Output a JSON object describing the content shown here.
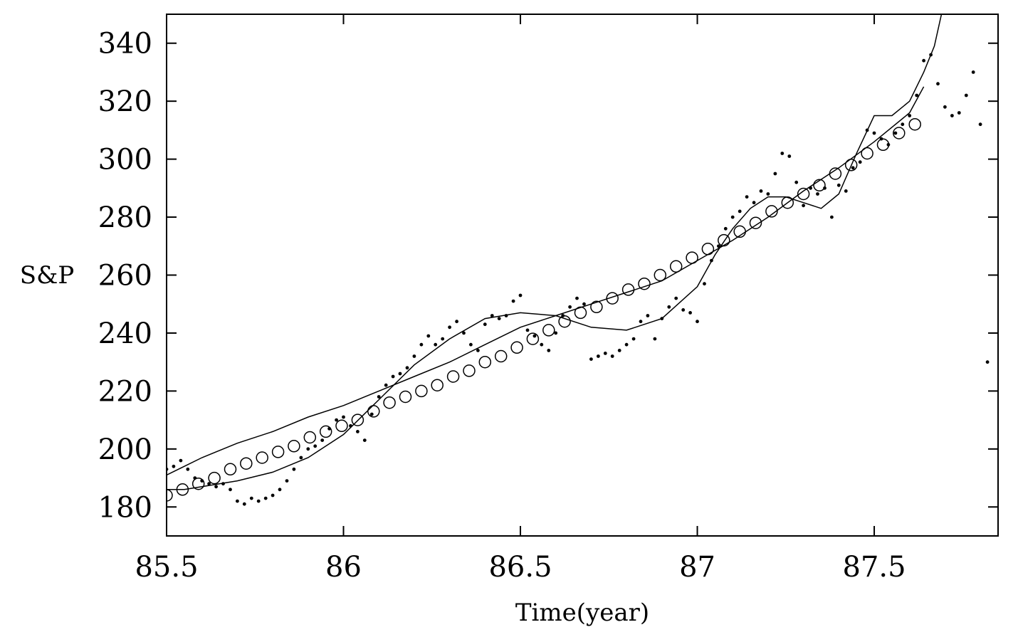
{
  "chart_data": {
    "type": "scatter",
    "title": "",
    "xlabel": "Time(year)",
    "ylabel": "S&P",
    "xlim": [
      85.5,
      87.85
    ],
    "ylim": [
      170,
      350
    ],
    "xticks": [
      85.5,
      86,
      86.5,
      87,
      87.5
    ],
    "xtick_labels": [
      "85.5",
      "86",
      "86.5",
      "87",
      "87.5"
    ],
    "yticks": [
      180,
      200,
      220,
      240,
      260,
      280,
      300,
      320,
      340
    ],
    "ytick_labels": [
      "180",
      "200",
      "220",
      "240",
      "260",
      "280",
      "300",
      "320",
      "340"
    ],
    "grid": false,
    "legend": "none",
    "series": [
      {
        "kind": "points",
        "x": [
          85.5,
          85.52,
          85.54,
          85.56,
          85.58,
          85.6,
          85.62,
          85.64,
          85.66,
          85.68,
          85.7,
          85.72,
          85.74,
          85.76,
          85.78,
          85.8,
          85.82,
          85.84,
          85.86,
          85.88,
          85.9,
          85.92,
          85.94,
          85.96,
          85.98,
          86.0,
          86.02,
          86.04,
          86.06,
          86.08,
          86.1,
          86.12,
          86.14,
          86.16,
          86.18,
          86.2,
          86.22,
          86.24,
          86.26,
          86.28,
          86.3,
          86.32,
          86.34,
          86.36,
          86.38,
          86.4,
          86.42,
          86.44,
          86.46,
          86.48,
          86.5,
          86.52,
          86.54,
          86.56,
          86.58,
          86.6,
          86.62,
          86.64,
          86.66,
          86.68,
          86.7,
          86.72,
          86.74,
          86.76,
          86.78,
          86.8,
          86.82,
          86.84,
          86.86,
          86.88,
          86.9,
          86.92,
          86.94,
          86.96,
          86.98,
          87.0,
          87.02,
          87.04,
          87.06,
          87.08,
          87.1,
          87.12,
          87.14,
          87.16,
          87.18,
          87.2,
          87.22,
          87.24,
          87.26,
          87.28,
          87.3,
          87.32,
          87.34,
          87.36,
          87.38,
          87.4,
          87.42,
          87.44,
          87.46,
          87.48,
          87.5,
          87.52,
          87.54,
          87.56,
          87.58,
          87.6,
          87.62,
          87.64,
          87.66,
          87.68,
          87.7,
          87.72,
          87.74,
          87.76,
          87.78,
          87.8,
          87.82
        ],
        "y": [
          193,
          194,
          196,
          193,
          190,
          189,
          188,
          187,
          188,
          186,
          182,
          181,
          183,
          182,
          183,
          184,
          186,
          189,
          193,
          197,
          200,
          201,
          203,
          207,
          210,
          211,
          208,
          206,
          203,
          212,
          218,
          222,
          225,
          226,
          228,
          232,
          236,
          239,
          236,
          238,
          242,
          244,
          240,
          236,
          234,
          243,
          246,
          245,
          246,
          251,
          253,
          241,
          239,
          236,
          234,
          240,
          246,
          249,
          252,
          250,
          231,
          232,
          233,
          232,
          234,
          236,
          238,
          244,
          246,
          238,
          245,
          249,
          252,
          248,
          247,
          244,
          257,
          265,
          270,
          276,
          280,
          282,
          287,
          285,
          289,
          288,
          295,
          302,
          301,
          292,
          284,
          290,
          288,
          290,
          280,
          291,
          289,
          297,
          299,
          310,
          309,
          307,
          305,
          309,
          312,
          315,
          322,
          334,
          336,
          326,
          318,
          315,
          316,
          322,
          330,
          312,
          230
        ]
      },
      {
        "kind": "line",
        "x": [
          85.5,
          85.6,
          85.7,
          85.8,
          85.9,
          86.0,
          86.1,
          86.2,
          86.3,
          86.4,
          86.5,
          86.6,
          86.7,
          86.8,
          86.9,
          87.0,
          87.1,
          87.2,
          87.3,
          87.4,
          87.5,
          87.6,
          87.64
        ],
        "y": [
          191,
          197,
          202,
          206,
          211,
          215,
          220,
          225,
          230,
          236,
          242,
          246,
          250,
          254,
          258,
          265,
          272,
          280,
          289,
          297,
          306,
          316,
          325
        ]
      },
      {
        "kind": "line",
        "x": [
          85.5,
          85.55,
          85.6,
          85.7,
          85.8,
          85.9,
          86.0,
          86.1,
          86.2,
          86.3,
          86.4,
          86.5,
          86.6,
          86.7,
          86.8,
          86.9,
          87.0,
          87.05,
          87.1,
          87.15,
          87.2,
          87.25,
          87.3,
          87.35,
          87.4,
          87.45,
          87.5,
          87.55,
          87.6,
          87.64,
          87.67,
          87.69
        ],
        "y": [
          186,
          186,
          187,
          189,
          192,
          197,
          205,
          217,
          229,
          238,
          245,
          247,
          246,
          242,
          241,
          245,
          256,
          267,
          276,
          283,
          287,
          287,
          285,
          283,
          288,
          302,
          315,
          315,
          320,
          330,
          339,
          350
        ]
      },
      {
        "kind": "circles",
        "x": [
          85.5,
          85.545,
          85.59,
          85.635,
          85.68,
          85.725,
          85.77,
          85.815,
          85.86,
          85.905,
          85.95,
          85.995,
          86.04,
          86.085,
          86.13,
          86.175,
          86.22,
          86.265,
          86.31,
          86.355,
          86.4,
          86.445,
          86.49,
          86.535,
          86.58,
          86.625,
          86.67,
          86.715,
          86.76,
          86.805,
          86.85,
          86.895,
          86.94,
          86.985,
          87.03,
          87.075,
          87.12,
          87.165,
          87.21,
          87.255,
          87.3,
          87.345,
          87.39,
          87.435,
          87.48,
          87.525,
          87.57,
          87.615
        ],
        "y": [
          184,
          186,
          188,
          190,
          193,
          195,
          197,
          199,
          201,
          204,
          206,
          208,
          210,
          213,
          216,
          218,
          220,
          222,
          225,
          227,
          230,
          232,
          235,
          238,
          241,
          244,
          247,
          249,
          252,
          255,
          257,
          260,
          263,
          266,
          269,
          272,
          275,
          278,
          282,
          285,
          288,
          291,
          295,
          298,
          302,
          305,
          309,
          312
        ]
      }
    ]
  }
}
